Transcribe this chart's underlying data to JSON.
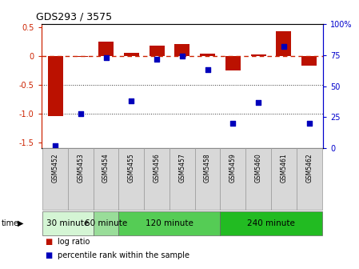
{
  "title": "GDS293 / 3575",
  "samples": [
    "GSM5452",
    "GSM5453",
    "GSM5454",
    "GSM5455",
    "GSM5456",
    "GSM5457",
    "GSM5458",
    "GSM5459",
    "GSM5460",
    "GSM5461",
    "GSM5462"
  ],
  "log_ratio": [
    -1.05,
    -0.02,
    0.25,
    0.05,
    0.18,
    0.2,
    0.04,
    -0.25,
    0.03,
    0.43,
    -0.17
  ],
  "percentile": [
    2,
    28,
    73,
    38,
    72,
    74,
    63,
    20,
    37,
    82,
    20
  ],
  "ylim_left": [
    -1.6,
    0.55
  ],
  "ylim_right": [
    0,
    100
  ],
  "bar_color": "#bb1100",
  "scatter_color": "#0000bb",
  "hline_color": "#cc2200",
  "dotline_color": "#333333",
  "bg_color": "#ffffff",
  "plot_bg": "#ffffff",
  "time_groups": [
    {
      "label": "30 minute",
      "start": 0,
      "end": 1,
      "color": "#d4f5d4"
    },
    {
      "label": "60 minute",
      "start": 2,
      "end": 2,
      "color": "#99dd99"
    },
    {
      "label": "120 minute",
      "start": 3,
      "end": 6,
      "color": "#66cc66"
    },
    {
      "label": "240 minute",
      "start": 7,
      "end": 10,
      "color": "#33bb33"
    }
  ],
  "left_yticks": [
    0.5,
    0,
    -0.5,
    -1.0,
    -1.5
  ],
  "right_yticks": [
    100,
    75,
    50,
    25,
    0
  ],
  "legend_bar_label": "log ratio",
  "legend_scatter_label": "percentile rank within the sample",
  "title_fontsize": 9,
  "tick_fontsize": 7,
  "sample_fontsize": 5.5,
  "time_fontsize": 7.5
}
